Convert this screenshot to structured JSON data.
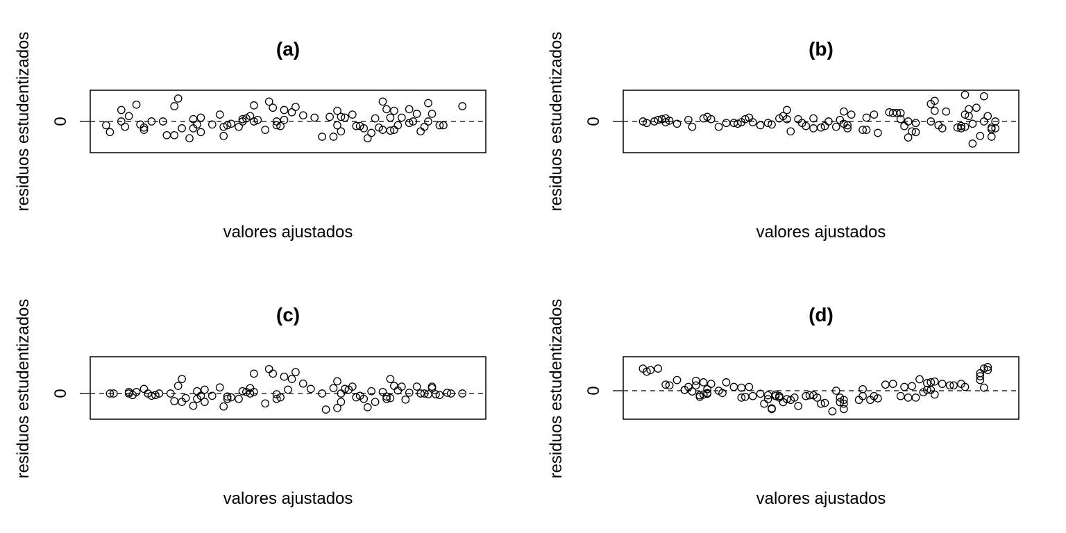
{
  "chart_data": [
    {
      "type": "scatter",
      "title": "(a)",
      "xlabel": "valores ajustados",
      "ylabel": "residuos estudentizados",
      "yticks": [
        "0"
      ],
      "reference_line": {
        "y": 0,
        "style": "dashed"
      },
      "axes": "frame only, no x tick labels",
      "xlim": [
        0,
        100
      ],
      "ylim": [
        -2,
        2
      ],
      "points": [
        [
          2,
          -0.25
        ],
        [
          3,
          -0.7
        ],
        [
          6,
          0.75
        ],
        [
          6,
          0.0
        ],
        [
          7,
          -0.35
        ],
        [
          8,
          0.35
        ],
        [
          10,
          1.1
        ],
        [
          11,
          -0.2
        ],
        [
          12,
          -0.4
        ],
        [
          12,
          -0.55
        ],
        [
          14,
          0.0
        ],
        [
          17,
          0.0
        ],
        [
          18,
          -0.9
        ],
        [
          20,
          -0.9
        ],
        [
          20,
          1.0
        ],
        [
          21,
          1.5
        ],
        [
          22,
          -0.45
        ],
        [
          24,
          -1.1
        ],
        [
          25,
          0.15
        ],
        [
          25,
          -0.45
        ],
        [
          26,
          -0.2
        ],
        [
          27,
          0.25
        ],
        [
          27,
          -0.7
        ],
        [
          30,
          -0.2
        ],
        [
          32,
          0.45
        ],
        [
          33,
          -0.95
        ],
        [
          33,
          -0.35
        ],
        [
          34,
          -0.25
        ],
        [
          35,
          -0.15
        ],
        [
          37,
          -0.35
        ],
        [
          38,
          0.15
        ],
        [
          38,
          0.0
        ],
        [
          39,
          0.2
        ],
        [
          40,
          0.35
        ],
        [
          41,
          0.0
        ],
        [
          41,
          1.05
        ],
        [
          42,
          0.1
        ],
        [
          44,
          -0.55
        ],
        [
          45,
          1.3
        ],
        [
          46,
          0.9
        ],
        [
          47,
          0.0
        ],
        [
          47,
          -0.25
        ],
        [
          48,
          -0.3
        ],
        [
          49,
          0.75
        ],
        [
          49,
          0.1
        ],
        [
          51,
          0.6
        ],
        [
          52,
          0.95
        ],
        [
          54,
          0.4
        ],
        [
          57,
          0.25
        ],
        [
          59,
          -1.0
        ],
        [
          61,
          0.3
        ],
        [
          62,
          -1.0
        ],
        [
          63,
          0.7
        ],
        [
          63,
          -0.25
        ],
        [
          64,
          0.3
        ],
        [
          64,
          -0.65
        ],
        [
          65,
          0.25
        ],
        [
          67,
          0.45
        ],
        [
          68,
          -0.3
        ],
        [
          69,
          -0.3
        ],
        [
          70,
          -0.45
        ],
        [
          71,
          -1.1
        ],
        [
          72,
          -0.75
        ],
        [
          73,
          0.2
        ],
        [
          74,
          -0.4
        ],
        [
          75,
          -0.55
        ],
        [
          75,
          1.3
        ],
        [
          76,
          0.8
        ],
        [
          77,
          -0.6
        ],
        [
          77,
          0.25
        ],
        [
          78,
          0.7
        ],
        [
          78,
          -0.55
        ],
        [
          79,
          -0.25
        ],
        [
          80,
          0.25
        ],
        [
          82,
          0.8
        ],
        [
          82,
          -0.1
        ],
        [
          83,
          0.0
        ],
        [
          84,
          0.5
        ],
        [
          85,
          -0.65
        ],
        [
          86,
          -0.35
        ],
        [
          87,
          1.2
        ],
        [
          87,
          0.0
        ],
        [
          88,
          0.5
        ],
        [
          90,
          -0.25
        ],
        [
          91,
          -0.25
        ],
        [
          96,
          1.0
        ]
      ]
    },
    {
      "type": "scatter",
      "title": "(b)",
      "xlabel": "valores ajustados",
      "ylabel": "residuos estudentizados",
      "yticks": [
        "0"
      ],
      "reference_line": {
        "y": 0,
        "style": "dashed"
      },
      "axes": "frame only, no x tick labels",
      "xlim": [
        0,
        100
      ],
      "ylim": [
        -2,
        2
      ],
      "points": [
        [
          3,
          0.0
        ],
        [
          4,
          -0.1
        ],
        [
          6,
          0.0
        ],
        [
          7,
          0.1
        ],
        [
          8,
          0.15
        ],
        [
          9,
          0.2
        ],
        [
          9,
          -0.05
        ],
        [
          10,
          0.05
        ],
        [
          12,
          -0.15
        ],
        [
          15,
          0.1
        ],
        [
          16,
          -0.35
        ],
        [
          19,
          0.2
        ],
        [
          20,
          0.3
        ],
        [
          21,
          0.15
        ],
        [
          23,
          -0.35
        ],
        [
          25,
          -0.1
        ],
        [
          27,
          -0.1
        ],
        [
          28,
          -0.15
        ],
        [
          29,
          -0.05
        ],
        [
          30,
          0.15
        ],
        [
          31,
          0.25
        ],
        [
          32,
          -0.05
        ],
        [
          34,
          -0.25
        ],
        [
          36,
          -0.1
        ],
        [
          37,
          -0.2
        ],
        [
          39,
          0.2
        ],
        [
          40,
          0.35
        ],
        [
          41,
          0.75
        ],
        [
          41,
          0.15
        ],
        [
          42,
          -0.65
        ],
        [
          44,
          0.15
        ],
        [
          45,
          -0.1
        ],
        [
          46,
          -0.3
        ],
        [
          48,
          0.2
        ],
        [
          48,
          -0.45
        ],
        [
          50,
          -0.4
        ],
        [
          51,
          -0.3
        ],
        [
          52,
          0.0
        ],
        [
          54,
          -0.35
        ],
        [
          55,
          0.1
        ],
        [
          56,
          -0.15
        ],
        [
          56,
          0.65
        ],
        [
          57,
          -0.25
        ],
        [
          57,
          -0.45
        ],
        [
          58,
          0.45
        ],
        [
          61,
          -0.55
        ],
        [
          62,
          -0.55
        ],
        [
          62,
          0.25
        ],
        [
          64,
          0.45
        ],
        [
          65,
          -0.75
        ],
        [
          68,
          0.6
        ],
        [
          69,
          0.55
        ],
        [
          70,
          0.55
        ],
        [
          71,
          0.15
        ],
        [
          71,
          0.55
        ],
        [
          72,
          -0.3
        ],
        [
          73,
          -1.05
        ],
        [
          73,
          0.0
        ],
        [
          74,
          -0.65
        ],
        [
          75,
          -0.7
        ],
        [
          75,
          -0.1
        ],
        [
          79,
          1.15
        ],
        [
          79,
          0.0
        ],
        [
          80,
          1.35
        ],
        [
          80,
          0.7
        ],
        [
          81,
          -0.25
        ],
        [
          82,
          -0.45
        ],
        [
          83,
          0.65
        ],
        [
          86,
          -0.4
        ],
        [
          87,
          -0.45
        ],
        [
          87,
          -0.3
        ],
        [
          88,
          0.45
        ],
        [
          88,
          1.75
        ],
        [
          88,
          -0.35
        ],
        [
          89,
          0.8
        ],
        [
          89,
          0.35
        ],
        [
          90,
          -1.45
        ],
        [
          90,
          -0.15
        ],
        [
          91,
          0.9
        ],
        [
          92,
          -0.95
        ],
        [
          93,
          0.0
        ],
        [
          93,
          1.65
        ],
        [
          94,
          0.35
        ],
        [
          95,
          -0.4
        ],
        [
          95,
          -1.0
        ],
        [
          95,
          -0.5
        ],
        [
          96,
          0.0
        ],
        [
          96,
          -0.45
        ]
      ]
    },
    {
      "type": "scatter",
      "title": "(c)",
      "xlabel": "valores ajustados",
      "ylabel": "residuos estudentizados",
      "yticks": [
        "0"
      ],
      "reference_line": {
        "y": 0,
        "style": "dashed"
      },
      "axes": "frame only, no x tick labels",
      "xlim": [
        0,
        100
      ],
      "ylim": [
        -2,
        2
      ],
      "points": [
        [
          3,
          0.0
        ],
        [
          4,
          0.0
        ],
        [
          8,
          0.1
        ],
        [
          8,
          0.0
        ],
        [
          9,
          -0.1
        ],
        [
          10,
          0.1
        ],
        [
          12,
          0.3
        ],
        [
          13,
          0.0
        ],
        [
          14,
          -0.15
        ],
        [
          15,
          -0.1
        ],
        [
          16,
          0.0
        ],
        [
          19,
          0.0
        ],
        [
          20,
          -0.5
        ],
        [
          21,
          0.5
        ],
        [
          22,
          0.95
        ],
        [
          22,
          -0.55
        ],
        [
          23,
          -0.3
        ],
        [
          25,
          -0.8
        ],
        [
          26,
          0.15
        ],
        [
          26,
          -0.35
        ],
        [
          27,
          -0.15
        ],
        [
          28,
          0.25
        ],
        [
          28,
          -0.55
        ],
        [
          30,
          -0.15
        ],
        [
          32,
          0.4
        ],
        [
          33,
          -0.85
        ],
        [
          34,
          -0.35
        ],
        [
          34,
          -0.2
        ],
        [
          35,
          -0.25
        ],
        [
          37,
          -0.35
        ],
        [
          38,
          0.15
        ],
        [
          39,
          0.1
        ],
        [
          40,
          0.35
        ],
        [
          40,
          0.0
        ],
        [
          41,
          1.3
        ],
        [
          41,
          0.1
        ],
        [
          44,
          -0.65
        ],
        [
          45,
          1.6
        ],
        [
          46,
          1.3
        ],
        [
          47,
          -0.05
        ],
        [
          47,
          -0.35
        ],
        [
          48,
          -0.25
        ],
        [
          49,
          1.1
        ],
        [
          50,
          0.25
        ],
        [
          51,
          0.95
        ],
        [
          52,
          1.4
        ],
        [
          54,
          0.65
        ],
        [
          56,
          0.3
        ],
        [
          59,
          0.0
        ],
        [
          60,
          -1.05
        ],
        [
          62,
          0.35
        ],
        [
          63,
          0.8
        ],
        [
          63,
          -0.95
        ],
        [
          64,
          0.0
        ],
        [
          64,
          -0.55
        ],
        [
          65,
          0.3
        ],
        [
          66,
          0.25
        ],
        [
          67,
          0.45
        ],
        [
          68,
          -0.25
        ],
        [
          69,
          -0.15
        ],
        [
          70,
          -0.35
        ],
        [
          71,
          -0.9
        ],
        [
          72,
          0.15
        ],
        [
          73,
          -0.55
        ],
        [
          75,
          0.1
        ],
        [
          76,
          -0.2
        ],
        [
          76,
          -0.35
        ],
        [
          77,
          0.95
        ],
        [
          77,
          -0.3
        ],
        [
          78,
          0.5
        ],
        [
          79,
          0.2
        ],
        [
          80,
          0.45
        ],
        [
          81,
          -0.4
        ],
        [
          82,
          0.05
        ],
        [
          84,
          0.45
        ],
        [
          85,
          0.0
        ],
        [
          86,
          0.0
        ],
        [
          87,
          -0.05
        ],
        [
          88,
          0.35
        ],
        [
          88,
          0.45
        ],
        [
          89,
          -0.05
        ],
        [
          90,
          -0.1
        ],
        [
          92,
          0.05
        ],
        [
          93,
          0.0
        ],
        [
          96,
          0.0
        ]
      ]
    },
    {
      "type": "scatter",
      "title": "(d)",
      "xlabel": "valores ajustados",
      "ylabel": "residuos estudentizados",
      "yticks": [
        "0"
      ],
      "reference_line": {
        "y": 0,
        "style": "dashed"
      },
      "axes": "frame only, no x tick labels",
      "xlim": [
        0,
        100
      ],
      "ylim": [
        -2,
        2
      ],
      "points": [
        [
          3,
          1.45
        ],
        [
          4,
          1.25
        ],
        [
          5,
          1.35
        ],
        [
          7,
          1.45
        ],
        [
          9,
          0.4
        ],
        [
          10,
          0.35
        ],
        [
          12,
          0.7
        ],
        [
          14,
          0.05
        ],
        [
          14,
          0.05
        ],
        [
          15,
          0.25
        ],
        [
          16,
          -0.05
        ],
        [
          17,
          0.65
        ],
        [
          17,
          0.35
        ],
        [
          18,
          -0.3
        ],
        [
          18,
          -0.4
        ],
        [
          19,
          0.55
        ],
        [
          19,
          -0.25
        ],
        [
          20,
          0.1
        ],
        [
          20,
          -0.15
        ],
        [
          20,
          0.1
        ],
        [
          20,
          -0.2
        ],
        [
          21,
          0.45
        ],
        [
          23,
          0.0
        ],
        [
          24,
          -0.15
        ],
        [
          25,
          0.55
        ],
        [
          27,
          0.25
        ],
        [
          29,
          -0.45
        ],
        [
          29,
          0.2
        ],
        [
          30,
          -0.4
        ],
        [
          31,
          0.25
        ],
        [
          32,
          -0.35
        ],
        [
          34,
          -0.2
        ],
        [
          35,
          -0.85
        ],
        [
          36,
          -0.3
        ],
        [
          36,
          -0.55
        ],
        [
          37,
          -1.2
        ],
        [
          37,
          -1.15
        ],
        [
          38,
          -0.35
        ],
        [
          38,
          -0.25
        ],
        [
          39,
          -0.35
        ],
        [
          39,
          -0.45
        ],
        [
          40,
          -0.75
        ],
        [
          41,
          -0.55
        ],
        [
          42,
          -0.6
        ],
        [
          43,
          -0.45
        ],
        [
          44,
          -1.0
        ],
        [
          46,
          -0.35
        ],
        [
          47,
          -0.3
        ],
        [
          48,
          -0.3
        ],
        [
          49,
          -0.45
        ],
        [
          50,
          -0.85
        ],
        [
          51,
          -0.8
        ],
        [
          53,
          -1.35
        ],
        [
          54,
          0.0
        ],
        [
          55,
          -0.75
        ],
        [
          55,
          -0.45
        ],
        [
          56,
          -0.6
        ],
        [
          56,
          -1.2
        ],
        [
          56,
          -0.85
        ],
        [
          60,
          -0.6
        ],
        [
          61,
          -0.35
        ],
        [
          61,
          0.1
        ],
        [
          63,
          -0.6
        ],
        [
          64,
          -0.35
        ],
        [
          65,
          -0.5
        ],
        [
          67,
          0.4
        ],
        [
          69,
          0.45
        ],
        [
          71,
          -0.35
        ],
        [
          72,
          0.25
        ],
        [
          73,
          -0.45
        ],
        [
          74,
          0.3
        ],
        [
          75,
          -0.45
        ],
        [
          76,
          0.75
        ],
        [
          77,
          -0.1
        ],
        [
          78,
          0.5
        ],
        [
          78,
          0.05
        ],
        [
          79,
          0.05
        ],
        [
          79,
          0.55
        ],
        [
          80,
          0.6
        ],
        [
          80,
          -0.25
        ],
        [
          82,
          0.45
        ],
        [
          84,
          0.35
        ],
        [
          85,
          0.35
        ],
        [
          87,
          0.45
        ],
        [
          88,
          0.25
        ],
        [
          92,
          1.15
        ],
        [
          92,
          0.95
        ],
        [
          92,
          0.7
        ],
        [
          93,
          1.45
        ],
        [
          93,
          0.2
        ],
        [
          94,
          1.35
        ],
        [
          94,
          1.55
        ]
      ]
    }
  ]
}
